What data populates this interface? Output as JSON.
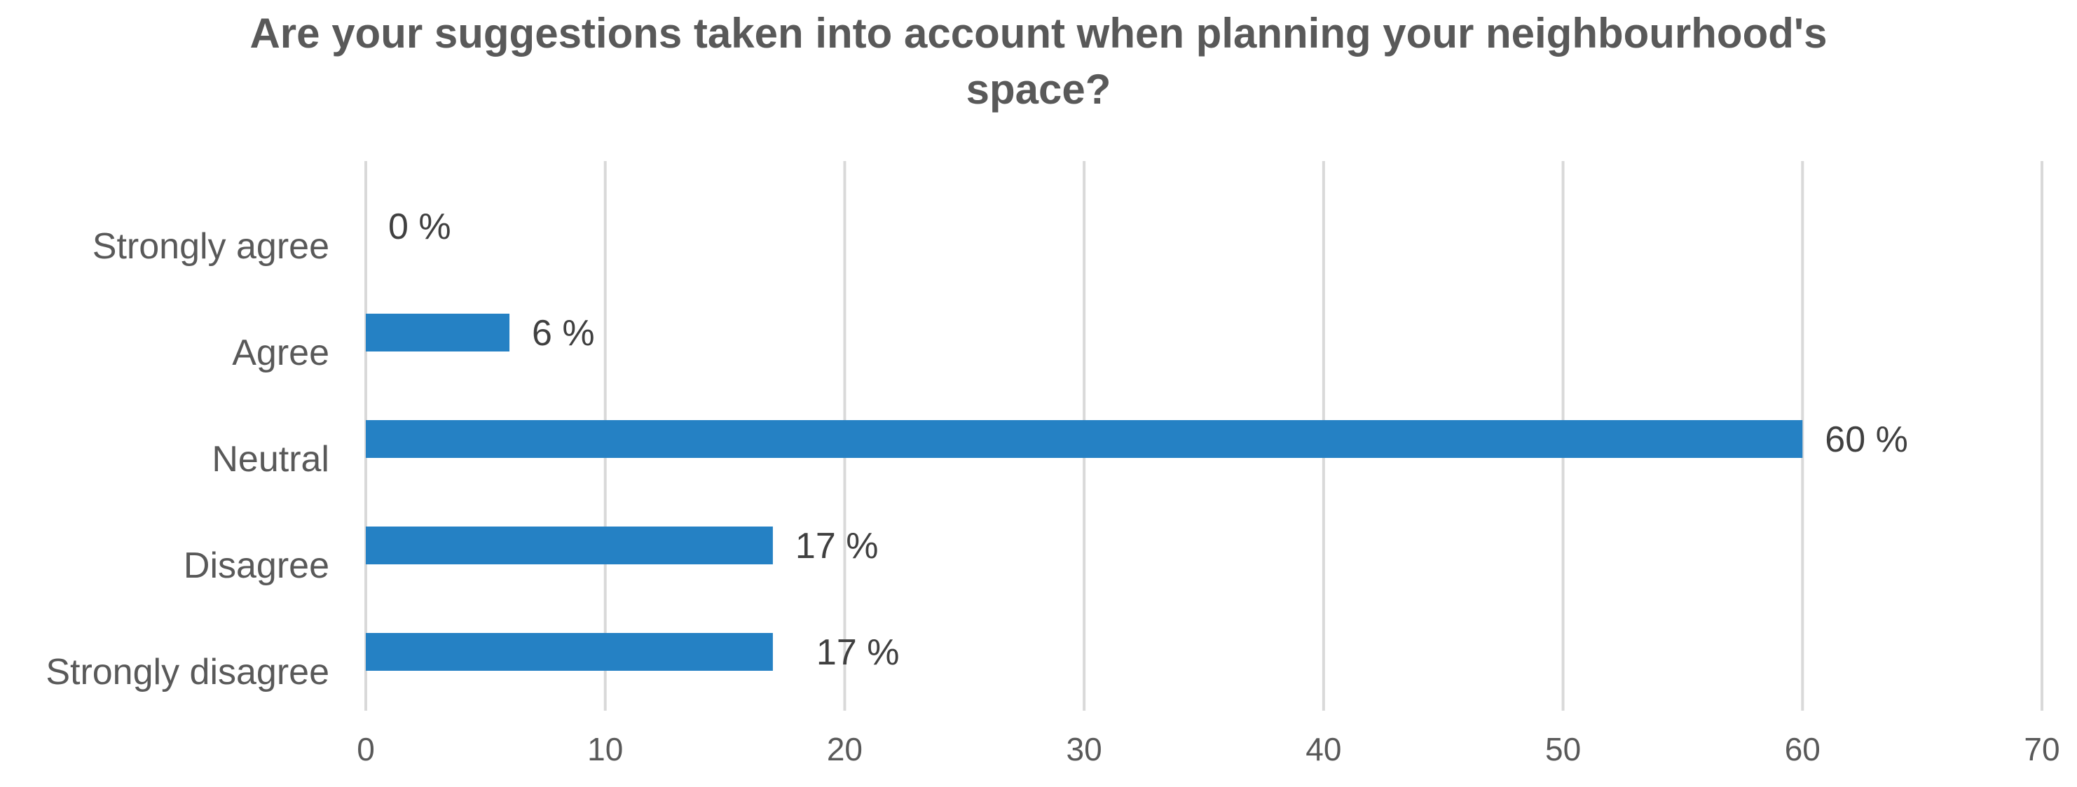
{
  "chart_data": {
    "type": "bar",
    "orientation": "horizontal",
    "title": "Are your suggestions taken into account when planning your neighbourhood's space?",
    "categories": [
      "Strongly agree",
      "Agree",
      "Neutral",
      "Disagree",
      "Strongly disagree"
    ],
    "values": [
      0,
      6,
      60,
      17,
      17
    ],
    "data_labels": [
      "0 %",
      "6 %",
      "60 %",
      "17 %",
      "17 %"
    ],
    "xlim": [
      0,
      70
    ],
    "xticks": [
      0,
      10,
      20,
      30,
      40,
      50,
      60,
      70
    ],
    "bar_color": "#2581C4",
    "grid": true,
    "legend": "none"
  }
}
